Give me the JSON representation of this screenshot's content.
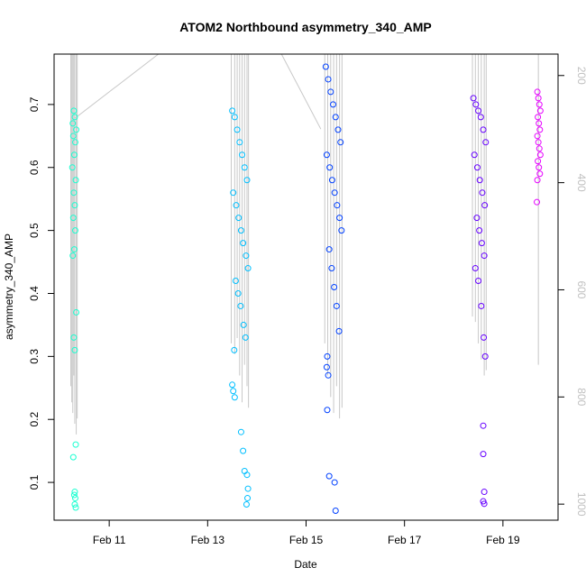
{
  "chart_data": {
    "type": "scatter",
    "title": "ATOM2 Northbound asymmetry_340_AMP",
    "xlabel": "Date",
    "ylabel": "asymmetry_340_AMP",
    "x_ticks": [
      "Feb 11",
      "Feb 13",
      "Feb 15",
      "Feb 17",
      "Feb 19"
    ],
    "x_tick_days": [
      11,
      13,
      15,
      17,
      19
    ],
    "xlim_days": [
      9.88,
      20.12
    ],
    "y_ticks": [
      "0.1",
      "0.2",
      "0.3",
      "0.4",
      "0.5",
      "0.6",
      "0.7"
    ],
    "ylim": [
      0.04,
      0.78
    ],
    "y2_ticks": [
      "200",
      "400",
      "600",
      "800",
      "1000"
    ],
    "y2lim": [
      1030,
      160
    ],
    "grid": false,
    "legend": "none",
    "series": [
      {
        "color": "#1AFFD1",
        "x_day": [
          10.28,
          10.3,
          10.26,
          10.33,
          10.27,
          10.31,
          10.29,
          10.25,
          10.32,
          10.28,
          10.3,
          10.27,
          10.31,
          10.29,
          10.26,
          10.33,
          10.28,
          10.3,
          10.32,
          10.27
        ],
        "y": [
          0.69,
          0.68,
          0.67,
          0.66,
          0.65,
          0.64,
          0.62,
          0.6,
          0.58,
          0.56,
          0.54,
          0.52,
          0.5,
          0.47,
          0.46,
          0.37,
          0.33,
          0.31,
          0.16,
          0.14
        ],
        "extra_points": {
          "x_day": [
            10.3,
            10.29,
            10.31,
            10.3,
            10.32
          ],
          "y": [
            0.085,
            0.08,
            0.075,
            0.065,
            0.06
          ]
        },
        "secondary_lines": {
          "x_day": [
            10.22,
            10.24,
            10.26,
            10.28,
            10.3,
            10.33,
            10.35
          ],
          "top": [
            160,
            160,
            160,
            160,
            160,
            160,
            160
          ],
          "bottom": [
            780,
            810,
            830,
            760,
            850,
            870,
            840
          ]
        }
      },
      {
        "color": "#00BFFF",
        "x_day": [
          13.5,
          13.55,
          13.6,
          13.65,
          13.7,
          13.75,
          13.8,
          13.52,
          13.58,
          13.63,
          13.68,
          13.72,
          13.78,
          13.82,
          13.57,
          13.62,
          13.67,
          13.73,
          13.77,
          13.54
        ],
        "y": [
          0.69,
          0.68,
          0.66,
          0.64,
          0.62,
          0.6,
          0.58,
          0.56,
          0.54,
          0.52,
          0.5,
          0.48,
          0.46,
          0.44,
          0.42,
          0.4,
          0.38,
          0.35,
          0.33,
          0.31
        ],
        "extra_points": {
          "x_day": [
            13.5,
            13.52,
            13.55,
            13.68,
            13.72,
            13.75,
            13.8,
            13.82,
            13.81,
            13.79
          ],
          "y": [
            0.255,
            0.245,
            0.235,
            0.18,
            0.15,
            0.118,
            0.112,
            0.09,
            0.075,
            0.065
          ]
        },
        "secondary_lines": {
          "x_day": [
            13.48,
            13.55,
            13.6,
            13.65,
            13.7,
            13.75,
            13.8,
            13.83
          ],
          "top": [
            160,
            160,
            160,
            160,
            160,
            160,
            160,
            160
          ],
          "bottom": [
            700,
            720,
            690,
            760,
            810,
            740,
            780,
            820
          ]
        }
      },
      {
        "color": "#0040FF",
        "x_day": [
          15.4,
          15.45,
          15.5,
          15.55,
          15.6,
          15.65,
          15.7,
          15.42,
          15.48,
          15.53,
          15.58,
          15.63,
          15.68,
          15.72,
          15.47,
          15.52,
          15.57,
          15.62,
          15.67,
          15.43
        ],
        "y": [
          0.76,
          0.74,
          0.72,
          0.7,
          0.68,
          0.66,
          0.64,
          0.62,
          0.6,
          0.58,
          0.56,
          0.54,
          0.52,
          0.5,
          0.47,
          0.44,
          0.41,
          0.38,
          0.34,
          0.3
        ],
        "extra_points": {
          "x_day": [
            15.42,
            15.45,
            15.43,
            15.47,
            15.58,
            15.6
          ],
          "y": [
            0.283,
            0.27,
            0.215,
            0.11,
            0.1,
            0.055
          ]
        },
        "secondary_lines": {
          "x_day": [
            15.38,
            15.44,
            15.5,
            15.56,
            15.62,
            15.68,
            15.73
          ],
          "top": [
            160,
            160,
            160,
            160,
            160,
            160,
            160
          ],
          "bottom": [
            700,
            760,
            800,
            830,
            780,
            840,
            820
          ]
        }
      },
      {
        "color": "#6600FF",
        "x_day": [
          18.4,
          18.45,
          18.5,
          18.55,
          18.6,
          18.65,
          18.42,
          18.48,
          18.53,
          18.58,
          18.63,
          18.47,
          18.52,
          18.57,
          18.62,
          18.44,
          18.5,
          18.56,
          18.61,
          18.64
        ],
        "y": [
          0.71,
          0.7,
          0.69,
          0.68,
          0.66,
          0.64,
          0.62,
          0.6,
          0.58,
          0.56,
          0.54,
          0.52,
          0.5,
          0.48,
          0.46,
          0.44,
          0.42,
          0.38,
          0.33,
          0.3
        ],
        "extra_points": {
          "x_day": [
            18.6,
            18.6,
            18.62,
            18.6,
            18.62
          ],
          "y": [
            0.19,
            0.145,
            0.085,
            0.07,
            0.066
          ]
        },
        "secondary_lines": {
          "x_day": [
            18.38,
            18.44,
            18.5,
            18.56,
            18.62,
            18.66
          ],
          "top": [
            160,
            160,
            160,
            160,
            160,
            160
          ],
          "bottom": [
            650,
            660,
            700,
            730,
            760,
            750
          ]
        }
      },
      {
        "color": "#E600FF",
        "x_day": [
          19.7,
          19.72,
          19.74,
          19.76,
          19.71,
          19.73,
          19.75,
          19.7,
          19.72,
          19.74,
          19.76,
          19.71,
          19.73,
          19.75,
          19.7
        ],
        "y": [
          0.72,
          0.71,
          0.7,
          0.69,
          0.68,
          0.67,
          0.66,
          0.65,
          0.64,
          0.63,
          0.62,
          0.61,
          0.6,
          0.59,
          0.58
        ],
        "extra_points": {
          "x_day": [
            19.69
          ],
          "y": [
            0.545
          ]
        },
        "secondary_lines": {
          "x_day": [
            19.72
          ],
          "top": [
            160
          ],
          "bottom": [
            740
          ]
        }
      }
    ],
    "connector_line": {
      "x_day": [
        10.3,
        12.0,
        14.5,
        15.3
      ],
      "y2": [
        280,
        160,
        160,
        300
      ]
    }
  }
}
